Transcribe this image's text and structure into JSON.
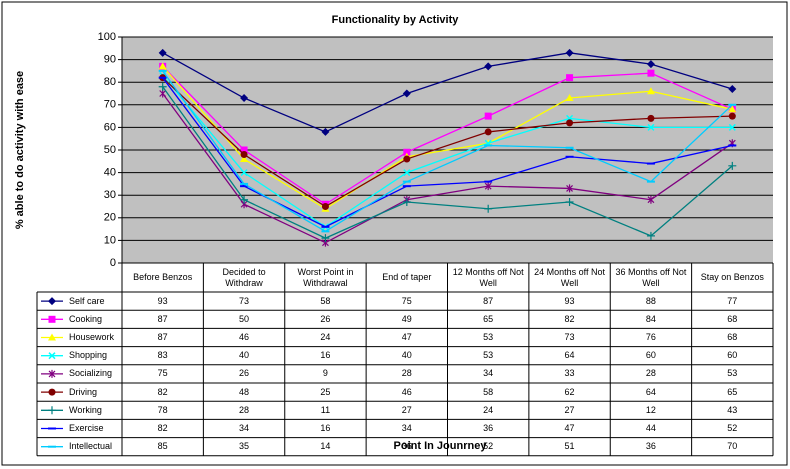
{
  "chart_data": {
    "type": "line",
    "title": "Functionality by Activity",
    "y_label": "% able to do activity with ease",
    "x_label": "Point In Jounrney",
    "categories": [
      "Before Benzos",
      "Decided to Withdraw",
      "Worst Point in Withdrawal",
      "End of taper",
      "12 Months off Not Well",
      "24 Months off Not Well",
      "36 Months off Not Well",
      "Stay on Benzos"
    ],
    "ylim": [
      0,
      100
    ],
    "yticks": [
      0,
      10,
      20,
      30,
      40,
      50,
      60,
      70,
      80,
      90,
      100
    ],
    "grid": true,
    "series": [
      {
        "name": "Self care",
        "color": "#000080",
        "marker": "diamond",
        "values": [
          93,
          73,
          58,
          75,
          87,
          93,
          88,
          77
        ]
      },
      {
        "name": "Cooking",
        "color": "#FF00FF",
        "marker": "square",
        "values": [
          87,
          50,
          26,
          49,
          65,
          82,
          84,
          68
        ]
      },
      {
        "name": "Housework",
        "color": "#FFFF00",
        "marker": "triangle",
        "values": [
          87,
          46,
          24,
          47,
          53,
          73,
          76,
          68
        ]
      },
      {
        "name": "Shopping",
        "color": "#00FFFF",
        "marker": "x",
        "values": [
          83,
          40,
          16,
          40,
          53,
          64,
          60,
          60
        ]
      },
      {
        "name": "Socializing",
        "color": "#800080",
        "marker": "star",
        "values": [
          75,
          26,
          9,
          28,
          34,
          33,
          28,
          53
        ]
      },
      {
        "name": "Driving",
        "color": "#800000",
        "marker": "circle",
        "values": [
          82,
          48,
          25,
          46,
          58,
          62,
          64,
          65
        ]
      },
      {
        "name": "Working",
        "color": "#008080",
        "marker": "plus",
        "values": [
          78,
          28,
          11,
          27,
          24,
          27,
          12,
          43
        ]
      },
      {
        "name": "Exercise",
        "color": "#0000FF",
        "marker": "dash",
        "values": [
          82,
          34,
          16,
          34,
          36,
          47,
          44,
          52
        ]
      },
      {
        "name": "Intellectual",
        "color": "#00CCFF",
        "marker": "dash",
        "values": [
          85,
          35,
          14,
          36,
          52,
          51,
          36,
          70
        ]
      }
    ]
  }
}
